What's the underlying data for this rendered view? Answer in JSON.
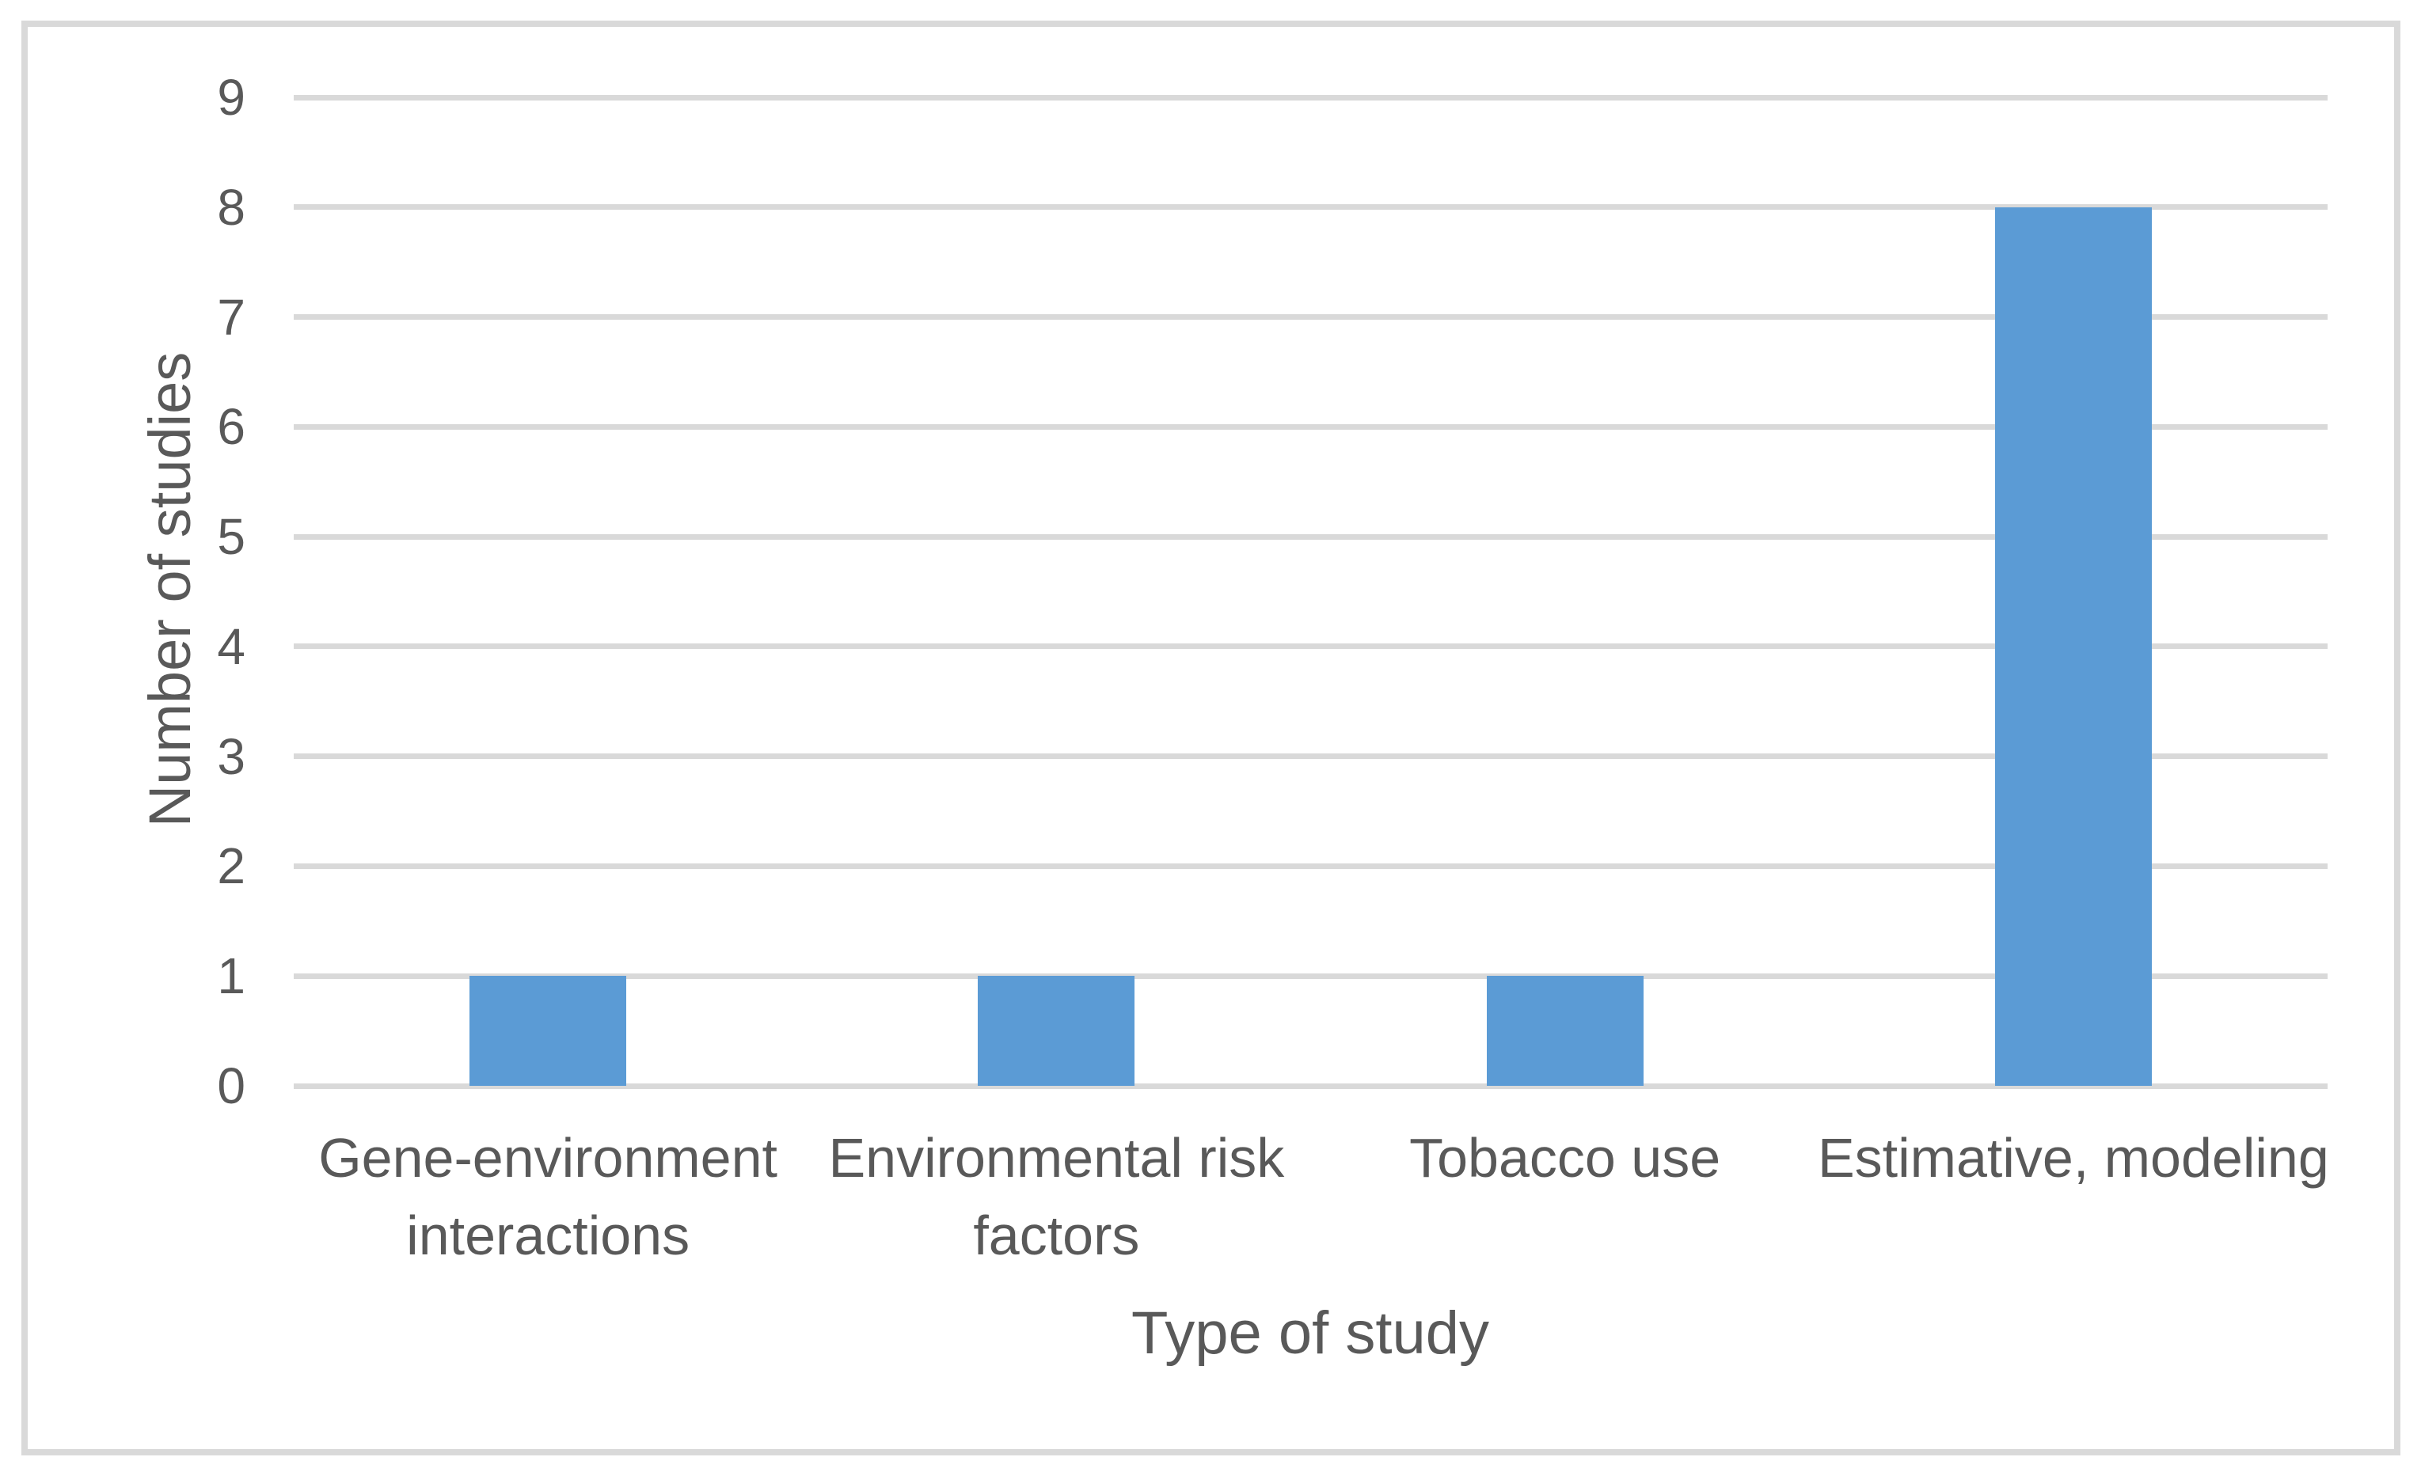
{
  "chart_data": {
    "type": "bar",
    "categories": [
      "Gene-environment interactions",
      "Environmental risk factors",
      "Tobacco use",
      "Estimative, modeling"
    ],
    "values": [
      1,
      1,
      1,
      8
    ],
    "title": "",
    "xlabel": "Type of study",
    "ylabel": "Number of studies",
    "ylim": [
      0,
      9
    ],
    "yticks": [
      0,
      1,
      2,
      3,
      4,
      5,
      6,
      7,
      8,
      9
    ],
    "grid": "horizontal",
    "legend": "none",
    "colors": {
      "bar": "#5B9BD5",
      "gridline": "#D9D9D9",
      "frame_border": "#D9D9D9",
      "text": "#595959"
    }
  }
}
